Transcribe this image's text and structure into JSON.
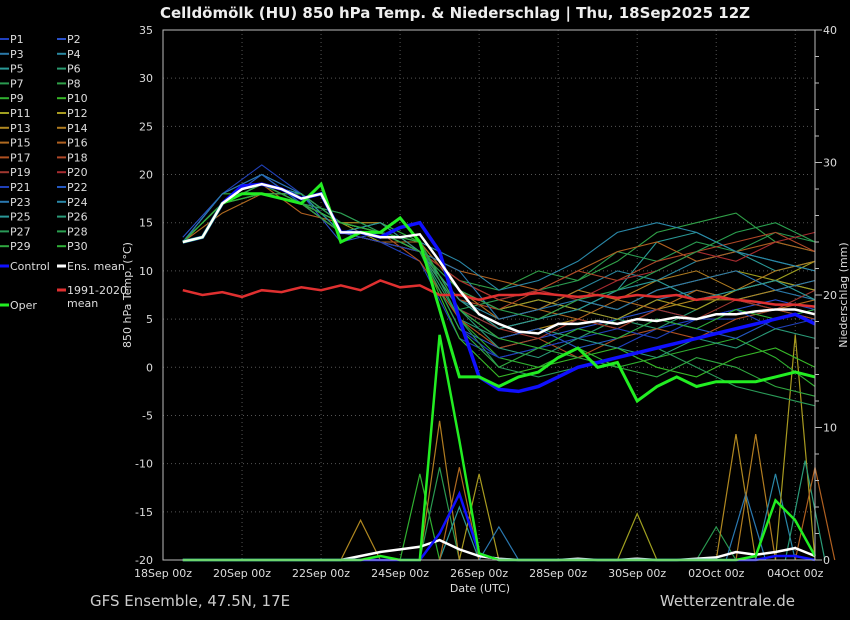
{
  "chart_data": {
    "type": "line",
    "title": "Celldömölk  (HU)  850 hPa Temp. & Niederschlag | Thu, 18Sep2025 12Z",
    "ylabel": "850 hPa Temp. (°C)",
    "y2label": "Niederschlag (mm)",
    "xlabel": "Date (UTC)",
    "ylim": [
      -20,
      35
    ],
    "y2lim": [
      0,
      40
    ],
    "yticks": [
      35,
      30,
      25,
      20,
      15,
      10,
      5,
      0,
      -5,
      -10,
      -15,
      -20
    ],
    "y2ticks": [
      40,
      30,
      20,
      10,
      0
    ],
    "xlim": [
      "2025-09-18T00",
      "2025-10-04T12"
    ],
    "xticks": [
      "2025-09-18T00",
      "2025-09-20T00",
      "2025-09-22T00",
      "2025-09-24T00",
      "2025-09-26T00",
      "2025-09-28T00",
      "2025-09-30T00",
      "2025-10-02T00",
      "2025-10-04T00"
    ],
    "xtick_labels": [
      "18Sep 00z",
      "20Sep 00z",
      "22Sep 00z",
      "24Sep 00z",
      "26Sep 00z",
      "28Sep 00z",
      "30Sep 00z",
      "02Oct 00z",
      "04Oct 00z"
    ],
    "grid": true,
    "legend_placement": "left-outside",
    "times_12h": [
      "2025-09-18T12",
      "2025-09-19T00",
      "2025-09-19T12",
      "2025-09-20T00",
      "2025-09-20T12",
      "2025-09-21T00",
      "2025-09-21T12",
      "2025-09-22T00",
      "2025-09-22T12",
      "2025-09-23T00",
      "2025-09-23T12",
      "2025-09-24T00",
      "2025-09-24T12",
      "2025-09-25T00",
      "2025-09-25T12",
      "2025-09-26T00",
      "2025-09-26T12",
      "2025-09-27T00",
      "2025-09-27T12",
      "2025-09-28T00",
      "2025-09-28T12",
      "2025-09-29T00",
      "2025-09-29T12",
      "2025-09-30T00",
      "2025-09-30T12",
      "2025-10-01T00",
      "2025-10-01T12",
      "2025-10-02T00",
      "2025-10-02T12",
      "2025-10-03T00",
      "2025-10-03T12",
      "2025-10-04T00",
      "2025-10-04T12"
    ],
    "times_daily": [
      "2025-09-18T12",
      "2025-09-19T12",
      "2025-09-20T12",
      "2025-09-21T12",
      "2025-09-22T12",
      "2025-09-23T12",
      "2025-09-24T12",
      "2025-09-25T12",
      "2025-09-26T12",
      "2025-09-27T12",
      "2025-09-28T12",
      "2025-09-29T12",
      "2025-09-30T12",
      "2025-10-01T12",
      "2025-10-02T12",
      "2025-10-03T12",
      "2025-10-04T12"
    ],
    "members": [
      {
        "name": "P1",
        "color": "#2040c0",
        "temp": [
          13,
          17,
          19,
          17,
          14,
          13,
          11,
          3,
          1,
          2,
          3,
          2,
          4,
          5,
          5,
          6,
          5
        ]
      },
      {
        "name": "P2",
        "color": "#2a50c8",
        "temp": [
          13.5,
          18,
          20,
          18,
          13,
          14,
          12,
          4,
          2,
          3,
          4,
          5,
          6,
          5,
          6,
          7,
          6
        ]
      },
      {
        "name": "P3",
        "color": "#2a78a8",
        "temp": [
          13,
          17,
          19,
          18,
          14,
          15,
          13,
          6,
          4,
          5,
          6,
          5,
          7,
          8,
          7,
          8,
          7
        ]
      },
      {
        "name": "P4",
        "color": "#2a88a0",
        "temp": [
          13,
          18,
          20,
          17,
          15,
          14,
          12,
          7,
          5,
          6,
          8,
          10,
          9,
          11,
          12,
          11,
          10
        ]
      },
      {
        "name": "P5",
        "color": "#2a9a98",
        "temp": [
          13,
          17,
          19,
          18,
          15,
          14,
          13,
          8,
          6,
          7,
          6,
          8,
          13,
          14,
          12,
          10,
          11
        ]
      },
      {
        "name": "P6",
        "color": "#2a9a70",
        "temp": [
          13,
          17,
          18,
          18,
          14,
          13,
          12,
          5,
          3,
          4,
          3,
          5,
          4,
          6,
          8,
          9,
          8
        ]
      },
      {
        "name": "P7",
        "color": "#2a9a50",
        "temp": [
          13,
          17,
          18,
          17,
          15,
          14,
          13,
          6,
          7,
          8,
          9,
          12,
          11,
          13,
          12,
          14,
          13
        ]
      },
      {
        "name": "P8",
        "color": "#30a048",
        "temp": [
          13,
          17,
          19,
          17,
          14,
          14,
          12,
          9,
          8,
          10,
          9,
          11,
          14,
          15,
          16,
          13,
          12
        ]
      },
      {
        "name": "P9",
        "color": "#30b030",
        "temp": [
          13,
          18,
          18,
          18,
          15,
          15,
          13,
          5,
          1,
          0,
          2,
          0,
          1,
          2,
          3,
          1,
          -2
        ]
      },
      {
        "name": "P10",
        "color": "#38b828",
        "temp": [
          13,
          17,
          19,
          17,
          16,
          14,
          12,
          3,
          -1,
          0,
          1,
          2,
          0,
          -1,
          1,
          2,
          0
        ]
      },
      {
        "name": "P11",
        "color": "#a0a020",
        "temp": [
          13,
          17,
          18,
          17,
          15,
          13,
          12,
          7,
          4,
          5,
          7,
          6,
          8,
          9,
          10,
          9,
          11
        ]
      },
      {
        "name": "P12",
        "color": "#a89a20",
        "temp": [
          13,
          17,
          19,
          17,
          14,
          14,
          13,
          8,
          6,
          7,
          6,
          5,
          7,
          6,
          8,
          9,
          8
        ]
      },
      {
        "name": "P13",
        "color": "#b08820",
        "temp": [
          13,
          17,
          18,
          17,
          15,
          14,
          12,
          6,
          3,
          4,
          5,
          4,
          6,
          7,
          7,
          8,
          9
        ]
      },
      {
        "name": "P14",
        "color": "#b07c20",
        "temp": [
          13,
          17,
          18,
          18,
          15,
          15,
          12,
          9,
          7,
          6,
          8,
          7,
          9,
          10,
          8,
          10,
          11
        ]
      },
      {
        "name": "P15",
        "color": "#b06a20",
        "temp": [
          13,
          16,
          18,
          17,
          14,
          13,
          13,
          8,
          5,
          6,
          5,
          7,
          6,
          8,
          7,
          6,
          7
        ]
      },
      {
        "name": "P16",
        "color": "#b06020",
        "temp": [
          13,
          17,
          19,
          16,
          15,
          14,
          12,
          10,
          9,
          8,
          10,
          12,
          13,
          11,
          12,
          13,
          12
        ]
      },
      {
        "name": "P17",
        "color": "#b05020",
        "temp": [
          13,
          17,
          18,
          17,
          15,
          14,
          11,
          5,
          2,
          3,
          1,
          3,
          4,
          3,
          5,
          6,
          5
        ]
      },
      {
        "name": "P18",
        "color": "#b04828",
        "temp": [
          13,
          17,
          19,
          17,
          14,
          13,
          12,
          7,
          6,
          8,
          10,
          9,
          11,
          12,
          13,
          14,
          12
        ]
      },
      {
        "name": "P19",
        "color": "#a03830",
        "temp": [
          13,
          17,
          18,
          17,
          14,
          14,
          13,
          6,
          4,
          3,
          5,
          4,
          6,
          5,
          7,
          6,
          8
        ]
      },
      {
        "name": "P20",
        "color": "#a82c30",
        "temp": [
          13,
          17,
          18,
          17,
          15,
          14,
          12,
          9,
          7,
          8,
          7,
          9,
          10,
          12,
          11,
          13,
          14
        ]
      },
      {
        "name": "P21",
        "color": "#2040b8",
        "temp": [
          13,
          18,
          21,
          18,
          14,
          13,
          12,
          4,
          1,
          2,
          3,
          4,
          3,
          5,
          6,
          4,
          5
        ]
      },
      {
        "name": "P22",
        "color": "#2458c0",
        "temp": [
          13,
          17,
          20,
          17,
          14,
          14,
          13,
          6,
          3,
          4,
          2,
          3,
          5,
          4,
          3,
          5,
          6
        ]
      },
      {
        "name": "P23",
        "color": "#2a78b0",
        "temp": [
          13,
          18,
          20,
          18,
          15,
          14,
          12,
          10,
          5,
          6,
          7,
          6,
          8,
          9,
          10,
          8,
          9
        ]
      },
      {
        "name": "P24",
        "color": "#2a88a8",
        "temp": [
          13,
          17,
          19,
          17,
          15,
          14,
          13,
          11,
          8,
          9,
          11,
          14,
          15,
          14,
          12,
          11,
          10
        ]
      },
      {
        "name": "P25",
        "color": "#2a9898",
        "temp": [
          13,
          17,
          19,
          18,
          14,
          15,
          12,
          7,
          4,
          5,
          6,
          8,
          9,
          7,
          8,
          9,
          7
        ]
      },
      {
        "name": "P26",
        "color": "#2a9a78",
        "temp": [
          13,
          17,
          18,
          17,
          15,
          14,
          12,
          6,
          2,
          1,
          3,
          2,
          1,
          3,
          2,
          4,
          3
        ]
      },
      {
        "name": "P27",
        "color": "#2a9a58",
        "temp": [
          13,
          17,
          18,
          17,
          16,
          14,
          13,
          5,
          0,
          -1,
          0,
          1,
          2,
          0,
          -2,
          -3,
          -4
        ]
      },
      {
        "name": "P28",
        "color": "#2aa050",
        "temp": [
          13,
          17,
          18,
          18,
          15,
          14,
          12,
          8,
          6,
          5,
          7,
          8,
          10,
          12,
          14,
          15,
          13
        ]
      },
      {
        "name": "P29",
        "color": "#30a840",
        "temp": [
          13,
          17,
          19,
          17,
          14,
          14,
          12,
          4,
          0,
          2,
          1,
          0,
          -1,
          1,
          0,
          -2,
          -3
        ]
      },
      {
        "name": "P30",
        "color": "#30b038",
        "temp": [
          13,
          17,
          18,
          17,
          15,
          14,
          13,
          6,
          3,
          2,
          4,
          3,
          5,
          4,
          6,
          5,
          6
        ]
      }
    ],
    "member_precip_events": [
      {
        "member": "P13",
        "time": "2025-09-23T00",
        "mm": 3
      },
      {
        "member": "P9",
        "time": "2025-09-24T12",
        "mm": 6.5
      },
      {
        "member": "P7",
        "time": "2025-09-25T00",
        "mm": 7
      },
      {
        "member": "P14",
        "time": "2025-09-25T00",
        "mm": 10.5
      },
      {
        "member": "P25",
        "time": "2025-09-25T12",
        "mm": 4
      },
      {
        "member": "P15",
        "time": "2025-09-25T12",
        "mm": 7
      },
      {
        "member": "P12",
        "time": "2025-09-26T00",
        "mm": 6.5
      },
      {
        "member": "P23",
        "time": "2025-09-26T12",
        "mm": 2.5
      },
      {
        "member": "P11",
        "time": "2025-09-30T00",
        "mm": 3.5
      },
      {
        "member": "P7",
        "time": "2025-10-02T00",
        "mm": 2.5
      },
      {
        "member": "P13",
        "time": "2025-10-02T12",
        "mm": 9.5
      },
      {
        "member": "P23",
        "time": "2025-10-02T18",
        "mm": 5
      },
      {
        "member": "P14",
        "time": "2025-10-03T00",
        "mm": 9.5
      },
      {
        "member": "P24",
        "time": "2025-10-03T12",
        "mm": 6.5
      },
      {
        "member": "P12",
        "time": "2025-10-04T00",
        "mm": 17
      },
      {
        "member": "P26",
        "time": "2025-10-04T06",
        "mm": 7.5
      },
      {
        "member": "P16",
        "time": "2025-10-04T12",
        "mm": 7
      }
    ],
    "control": {
      "name": "Control",
      "color": "#1010ff",
      "temp": [
        13,
        13.5,
        17,
        18.8,
        19,
        18.5,
        17.5,
        18,
        14,
        14,
        13.5,
        14.5,
        15,
        12,
        5,
        -1,
        -2.3,
        -2.5,
        -2,
        -1,
        0,
        0.5,
        1,
        1.5,
        2,
        2.5,
        3,
        3.5,
        4,
        4.5,
        5,
        5.5,
        4.5
      ],
      "precip": [
        0,
        0,
        0,
        0,
        0,
        0,
        0,
        0,
        0,
        0,
        0,
        0,
        0,
        2,
        5,
        0.5,
        0,
        0,
        0,
        0,
        0,
        0,
        0,
        0,
        0,
        0,
        0,
        0,
        0,
        0,
        0.3,
        0.3,
        0
      ]
    },
    "ens_mean": {
      "name": "Ens. mean",
      "color": "#ffffff",
      "temp": [
        13,
        13.5,
        17,
        18.5,
        19,
        18.5,
        17.5,
        18,
        14,
        14,
        13.5,
        13.5,
        13.8,
        11,
        8,
        5.5,
        4.5,
        3.7,
        3.5,
        4.5,
        4.5,
        4.8,
        4.5,
        5,
        4.8,
        5.2,
        5,
        5.5,
        5.5,
        5.8,
        6,
        6,
        5.5
      ],
      "precip": [
        0,
        0,
        0,
        0,
        0,
        0,
        0,
        0,
        0,
        0.3,
        0.6,
        0.8,
        1,
        1.5,
        0.8,
        0.3,
        0.1,
        0,
        0,
        0,
        0.1,
        0,
        0,
        0.1,
        0,
        0,
        0.1,
        0.2,
        0.6,
        0.4,
        0.6,
        0.9,
        0.3
      ]
    },
    "oper": {
      "name": "Oper",
      "color": "#22ee22",
      "temp": [
        13,
        13.5,
        17,
        18,
        18,
        17.5,
        17,
        19,
        13,
        14,
        14,
        15.5,
        13,
        6,
        -1,
        -1,
        -2,
        -1,
        -0.5,
        1,
        2,
        0,
        0.5,
        -3.5,
        -2,
        -1,
        -2,
        -1.5,
        -1.5,
        -1.5,
        -1,
        -0.5,
        -1
      ],
      "precip": [
        0,
        0,
        0,
        0,
        0,
        0,
        0,
        0,
        0,
        0,
        0.3,
        0,
        0,
        17,
        9,
        0.5,
        0,
        0,
        0,
        0,
        0,
        0,
        0,
        0,
        0,
        0,
        0,
        0,
        0,
        0.3,
        4.5,
        3,
        0.3
      ]
    },
    "climate": {
      "name": "1991-2020 mean",
      "color": "#e03030",
      "temp": [
        8,
        7.5,
        7.8,
        7.3,
        8,
        7.8,
        8.3,
        8,
        8.5,
        8,
        9,
        8.3,
        8.5,
        7.5,
        7.5,
        7,
        7.5,
        7.5,
        7.7,
        7.5,
        7.3,
        7.5,
        7.2,
        7.5,
        7.3,
        7.5,
        7,
        7.3,
        7,
        6.8,
        6.5,
        6.5,
        6.3
      ]
    }
  },
  "footer": {
    "left": "GFS Ensemble, 47.5N, 17E",
    "right": "Wetterzentrale.de"
  }
}
